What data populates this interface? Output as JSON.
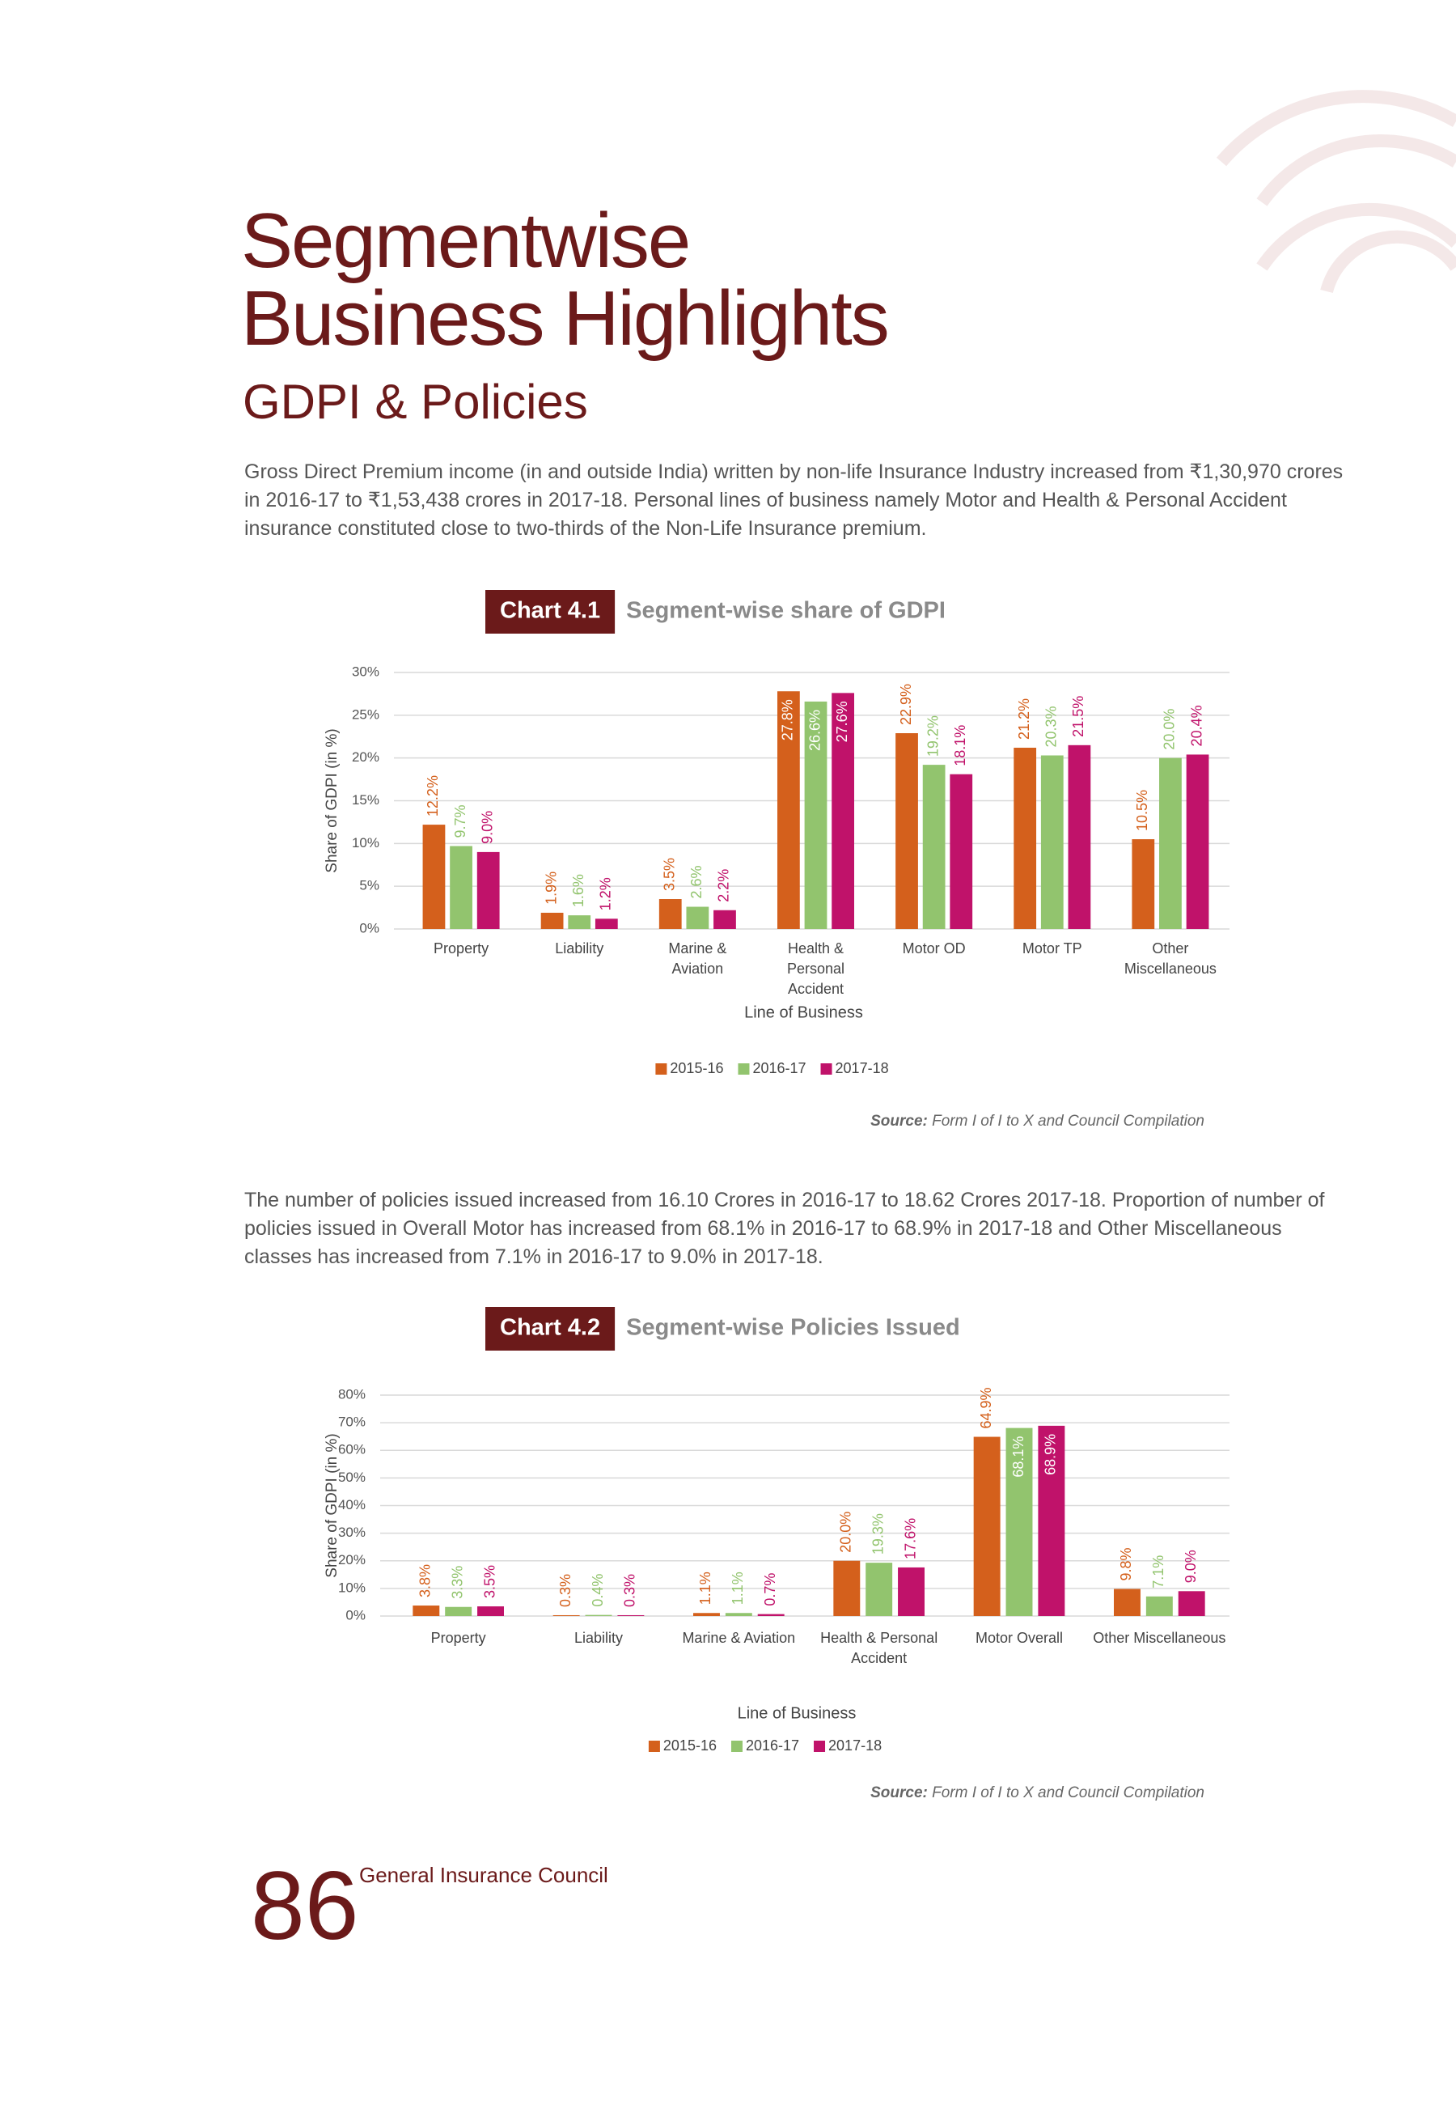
{
  "header": {
    "title": [
      "Segmentwise",
      "Business Highlights"
    ],
    "subtitle": "GDPI & Policies"
  },
  "paragraphs": [
    "Gross Direct Premium income (in and outside India) written by non-life Insurance Industry increased from ₹1,30,970 crores in 2016-17 to ₹1,53,438 crores in 2017-18. Personal lines of business namely Motor and Health & Personal Accident insurance constituted close to two-thirds of the Non-Life Insurance premium.",
    "The number of policies issued increased from 16.10 Crores in 2016-17 to 18.62 Crores 2017-18. Proportion of number of policies issued in Overall Motor has increased from 68.1% in 2016-17 to 68.9% in 2017-18 and Other Miscellaneous classes has increased from 7.1% in 2016-17 to 9.0% in 2017-18."
  ],
  "chart_data": [
    {
      "type": "bar",
      "chart_label": "Chart 4.1",
      "title": "Segment-wise share of GDPI",
      "x_label": "Line of Business",
      "y_label": "Share of GDPI (in %)",
      "categories": [
        "Property",
        "Liability",
        "Marine & Aviation",
        "Health & Personal Accident",
        "Motor OD",
        "Motor TP",
        "Other Miscellaneous"
      ],
      "series": [
        {
          "name": "2015-16",
          "color": "#d4601c",
          "values": [
            12.2,
            1.9,
            3.5,
            27.8,
            22.9,
            21.2,
            10.5
          ],
          "value_labels": [
            "12.2%",
            "1.9%",
            "3.5%",
            "27.8%",
            "22.9%",
            "21.2%",
            "10.5%"
          ]
        },
        {
          "name": "2016-17",
          "color": "#92c46e",
          "values": [
            9.7,
            1.6,
            2.6,
            26.6,
            19.2,
            20.3,
            20
          ],
          "value_labels": [
            "9.7%",
            "1.6%",
            "2.6%",
            "26.6%",
            "19.2%",
            "20.3%",
            "20.0%"
          ]
        },
        {
          "name": "2017-18",
          "color": "#c0126a",
          "values": [
            9,
            1.2,
            2.2,
            27.6,
            18.1,
            21.5,
            20.4
          ],
          "value_labels": [
            "9.0%",
            "1.2%",
            "2.2%",
            "27.6%",
            "18.1%",
            "21.5%",
            "20.4%"
          ]
        }
      ],
      "ylim": [
        0,
        30
      ],
      "yticks": [
        {
          "value": 0,
          "label": "0%"
        },
        {
          "value": 5,
          "label": "5%"
        },
        {
          "value": 10,
          "label": "10%"
        },
        {
          "value": 15,
          "label": "15%"
        },
        {
          "value": 20,
          "label": "20%"
        },
        {
          "value": 25,
          "label": "25%"
        },
        {
          "value": 30,
          "label": "30%"
        }
      ],
      "grid": true,
      "legend": "bottom",
      "source_label": "Source:",
      "source": "Form I of I to X and Council Compilation"
    },
    {
      "type": "bar",
      "chart_label": "Chart 4.2",
      "title": "Segment-wise Policies Issued",
      "x_label": "Line of Business",
      "y_label": "Share of GDPI (in %)",
      "categories": [
        "Property",
        "Liability",
        "Marine & Aviation",
        "Health & Personal Accident",
        "Motor Overall",
        "Other Miscellaneous"
      ],
      "series": [
        {
          "name": "2015-16",
          "color": "#d4601c",
          "values": [
            3.8,
            0.3,
            1.1,
            20,
            64.9,
            9.8
          ],
          "value_labels": [
            "3.8%",
            "0.3%",
            "1.1%",
            "20.0%",
            "64.9%",
            "9.8%"
          ]
        },
        {
          "name": "2016-17",
          "color": "#92c46e",
          "values": [
            3.3,
            0.4,
            1.1,
            19.3,
            68.1,
            7.1
          ],
          "value_labels": [
            "3.3%",
            "0.4%",
            "1.1%",
            "19.3%",
            "68.1%",
            "7.1%"
          ]
        },
        {
          "name": "2017-18",
          "color": "#c0126a",
          "values": [
            3.5,
            0.3,
            0.7,
            17.6,
            68.9,
            9
          ],
          "value_labels": [
            "3.5%",
            "0.3%",
            "0.7%",
            "17.6%",
            "68.9%",
            "9.0%"
          ]
        }
      ],
      "ylim": [
        0,
        80
      ],
      "yticks": [
        {
          "value": 0,
          "label": "0%"
        },
        {
          "value": 10,
          "label": "10%"
        },
        {
          "value": 20,
          "label": "20%"
        },
        {
          "value": 30,
          "label": "30%"
        },
        {
          "value": 40,
          "label": "40%"
        },
        {
          "value": 50,
          "label": "50%"
        },
        {
          "value": 60,
          "label": "60%"
        },
        {
          "value": 70,
          "label": "70%"
        },
        {
          "value": 80,
          "label": "80%"
        }
      ],
      "grid": true,
      "legend": "bottom",
      "source_label": "Source:",
      "source": "Form I of I to X and Council Compilation"
    }
  ],
  "footer": {
    "page_number": "86",
    "organization": "General Insurance Council"
  }
}
